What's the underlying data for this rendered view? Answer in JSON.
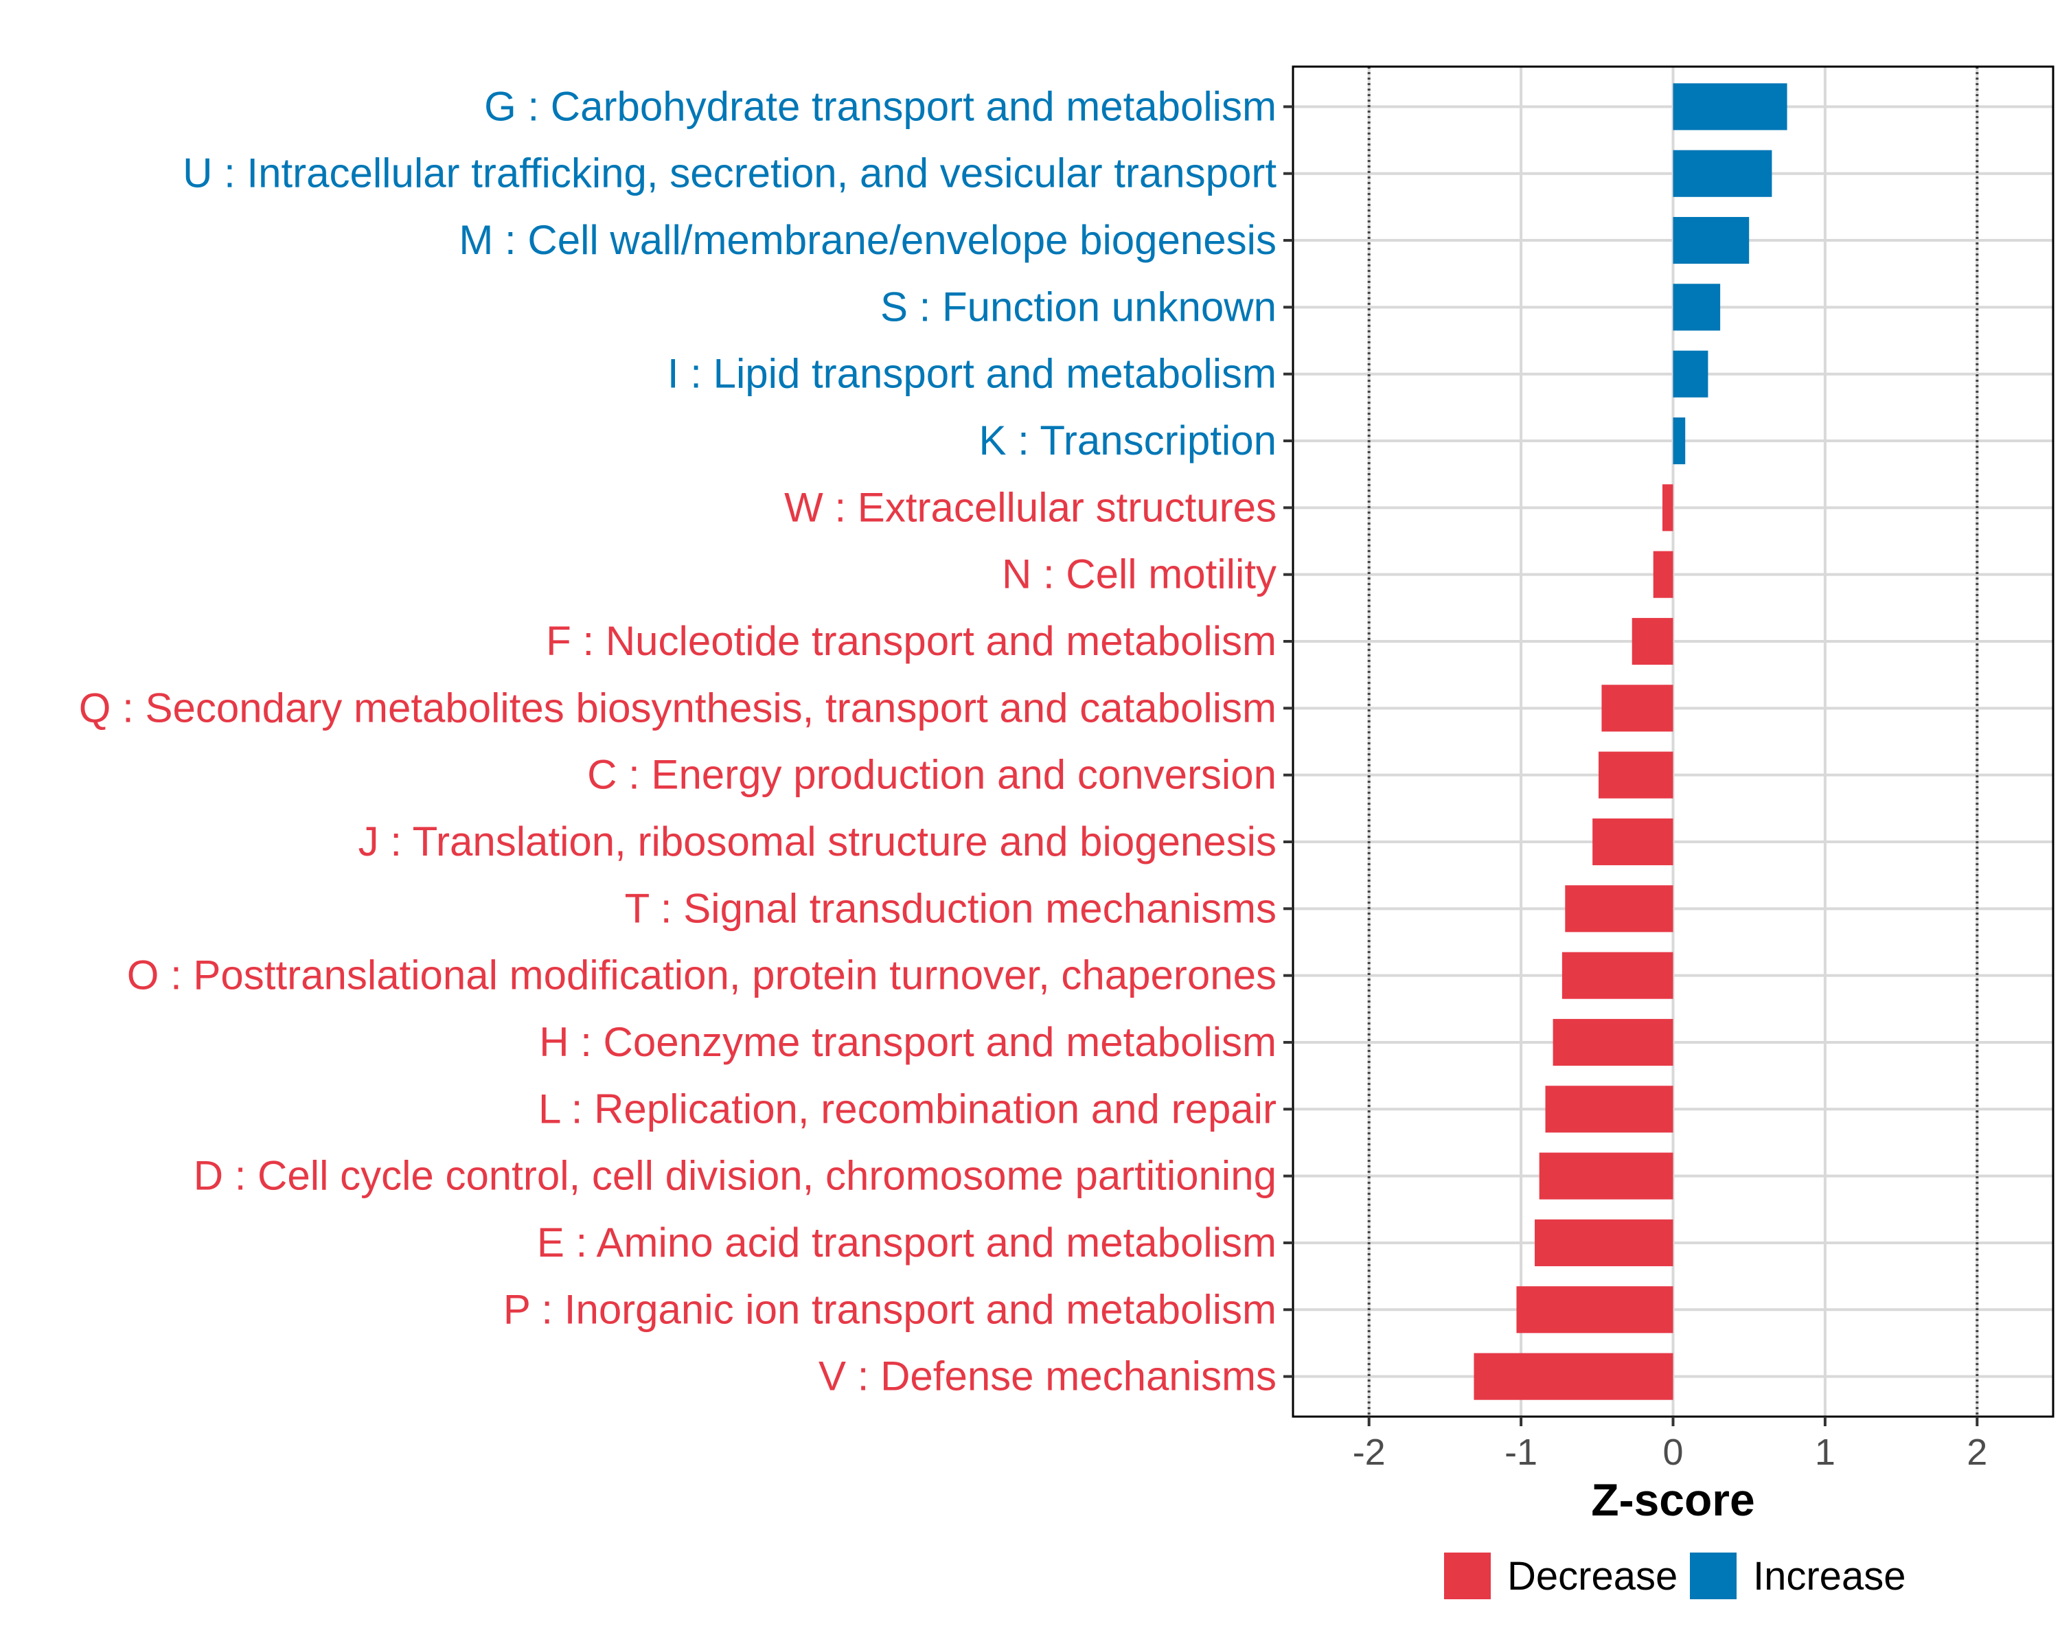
{
  "chart_data": {
    "type": "bar",
    "orientation": "horizontal",
    "xlabel": "Z-score",
    "xlim": [
      -2.5,
      2.5
    ],
    "xticks": [
      -2,
      -1,
      0,
      1,
      2
    ],
    "xtick_labels": [
      "-2",
      "-1",
      "0",
      "1",
      "2"
    ],
    "reference_lines": [
      -2,
      2
    ],
    "grid": true,
    "legend_position": "bottom",
    "legend": [
      {
        "label": "Decrease",
        "color": "#E63946"
      },
      {
        "label": "Increase",
        "color": "#0077B6"
      }
    ],
    "categories": [
      {
        "label": "G : Carbohydrate transport and metabolism",
        "value": 0.75,
        "direction": "Increase"
      },
      {
        "label": "U : Intracellular trafficking, secretion, and vesicular transport",
        "value": 0.65,
        "direction": "Increase"
      },
      {
        "label": "M : Cell wall/membrane/envelope biogenesis",
        "value": 0.5,
        "direction": "Increase"
      },
      {
        "label": "S : Function unknown",
        "value": 0.31,
        "direction": "Increase"
      },
      {
        "label": "I : Lipid transport and metabolism",
        "value": 0.23,
        "direction": "Increase"
      },
      {
        "label": "K : Transcription",
        "value": 0.08,
        "direction": "Increase"
      },
      {
        "label": "W : Extracellular structures",
        "value": -0.07,
        "direction": "Decrease"
      },
      {
        "label": "N : Cell motility",
        "value": -0.13,
        "direction": "Decrease"
      },
      {
        "label": "F : Nucleotide transport and metabolism",
        "value": -0.27,
        "direction": "Decrease"
      },
      {
        "label": "Q : Secondary metabolites biosynthesis, transport and catabolism",
        "value": -0.47,
        "direction": "Decrease"
      },
      {
        "label": "C : Energy production and conversion",
        "value": -0.49,
        "direction": "Decrease"
      },
      {
        "label": "J : Translation, ribosomal structure and biogenesis",
        "value": -0.53,
        "direction": "Decrease"
      },
      {
        "label": "T : Signal transduction mechanisms",
        "value": -0.71,
        "direction": "Decrease"
      },
      {
        "label": "O : Posttranslational modification, protein turnover, chaperones",
        "value": -0.73,
        "direction": "Decrease"
      },
      {
        "label": "H : Coenzyme transport and metabolism",
        "value": -0.79,
        "direction": "Decrease"
      },
      {
        "label": "L : Replication, recombination and repair",
        "value": -0.84,
        "direction": "Decrease"
      },
      {
        "label": "D : Cell cycle control, cell division, chromosome partitioning",
        "value": -0.88,
        "direction": "Decrease"
      },
      {
        "label": "E : Amino acid transport and metabolism",
        "value": -0.91,
        "direction": "Decrease"
      },
      {
        "label": "P : Inorganic ion transport and metabolism",
        "value": -1.03,
        "direction": "Decrease"
      },
      {
        "label": "V : Defense mechanisms",
        "value": -1.31,
        "direction": "Decrease"
      }
    ]
  }
}
